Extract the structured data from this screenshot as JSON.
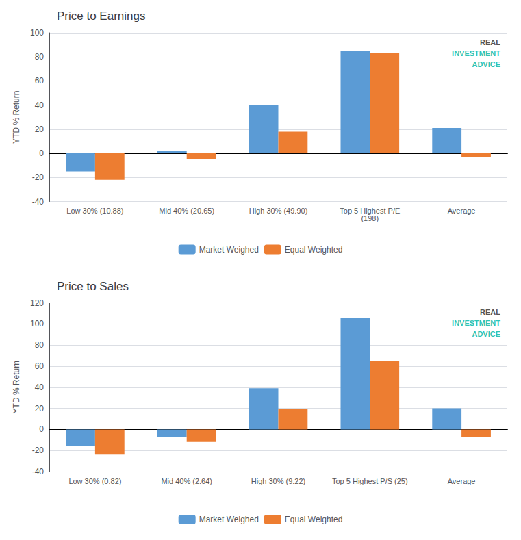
{
  "chart_data": [
    {
      "type": "bar",
      "title": "Price to Earnings",
      "ylabel": "YTD % Return",
      "categories": [
        "Low 30% (10.88)",
        "Mid 40% (20.65)",
        "High 30% (49.90)",
        "Top 5 Highest P/E\n(198)",
        "Average"
      ],
      "series": [
        {
          "name": "Market Weighed",
          "color": "#5B9BD5",
          "values": [
            -15,
            2,
            40,
            85,
            21
          ]
        },
        {
          "name": "Equal Weighted",
          "color": "#ED7D31",
          "values": [
            -22,
            -5,
            18,
            83,
            -3
          ]
        }
      ],
      "ylim": [
        -40,
        100
      ],
      "yticks": [
        -40,
        -20,
        0,
        20,
        40,
        60,
        80,
        100
      ],
      "grid": true,
      "legend": "bottom",
      "annotations": [
        "REAL",
        "INVESTMENT",
        "ADVICE"
      ]
    },
    {
      "type": "bar",
      "title": "Price to Sales",
      "ylabel": "YTD % Return",
      "categories": [
        "Low 30% (0.82)",
        "Mid 40% (2.64)",
        "High 30% (9.22)",
        "Top 5 Highest P/S (25)",
        "Average"
      ],
      "series": [
        {
          "name": "Market Weighed",
          "color": "#5B9BD5",
          "values": [
            -16,
            -7,
            39,
            106,
            20
          ]
        },
        {
          "name": "Equal Weighted",
          "color": "#ED7D31",
          "values": [
            -24,
            -12,
            19,
            65,
            -7
          ]
        }
      ],
      "ylim": [
        -40,
        120
      ],
      "yticks": [
        -40,
        -20,
        0,
        20,
        40,
        60,
        80,
        100,
        120
      ],
      "grid": true,
      "legend": "bottom",
      "annotations": [
        "REAL",
        "INVESTMENT",
        "ADVICE"
      ]
    }
  ]
}
